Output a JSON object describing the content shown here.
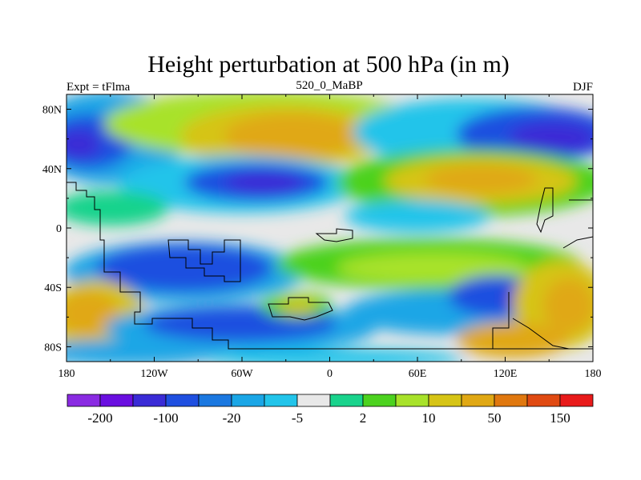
{
  "title": "Height perturbation at 500 hPa (in m)",
  "left_label": "Expt = tFlma",
  "center_label": "520_0_MaBP",
  "right_label": "DJF",
  "y_ticks": [
    "80N",
    "40N",
    "0",
    "40S",
    "80S"
  ],
  "x_ticks": [
    "180",
    "120W",
    "60W",
    "0",
    "60E",
    "120E",
    "180"
  ],
  "colorbar": {
    "colors": [
      "#8a2be2",
      "#6a0fe0",
      "#3a2bd6",
      "#1f4fe0",
      "#1b78e0",
      "#1aa6e6",
      "#22c4ea",
      "#e8e8e8",
      "#19d38c",
      "#4cd21f",
      "#a8e22a",
      "#d6c416",
      "#e0a814",
      "#e0780f",
      "#e04a12",
      "#e81a1a"
    ],
    "labels": [
      "-200",
      "-100",
      "-20",
      "-5",
      "2",
      "10",
      "50",
      "150"
    ]
  },
  "chart_data": {
    "type": "heatmap",
    "title": "Height perturbation at 500 hPa (in m)",
    "subtitle": "520_0_MaBP",
    "experiment": "Expt = tFlma",
    "season": "DJF",
    "x_range": [
      -180,
      180
    ],
    "y_range": [
      -90,
      90
    ],
    "x_ticks": [
      -180,
      -120,
      -60,
      0,
      60,
      120,
      180
    ],
    "y_ticks": [
      80,
      40,
      0,
      -40,
      -80
    ],
    "levels": [
      "-200",
      "-100",
      "-20",
      "-5",
      "2",
      "10",
      "50",
      "150"
    ],
    "features": [
      {
        "lon": -165,
        "lat": 62,
        "value": -150
      },
      {
        "lon": -70,
        "lat": 40,
        "value": -80
      },
      {
        "lon": 10,
        "lat": 68,
        "value": 120
      },
      {
        "lon": 145,
        "lat": 68,
        "value": -120
      },
      {
        "lon": 85,
        "lat": 38,
        "value": 90
      },
      {
        "lon": -165,
        "lat": -60,
        "value": 70
      },
      {
        "lon": -100,
        "lat": -35,
        "value": -60
      },
      {
        "lon": 120,
        "lat": -60,
        "value": 60
      },
      {
        "lon": 130,
        "lat": -48,
        "value": -70
      },
      {
        "lon": 60,
        "lat": -22,
        "value": 35
      }
    ]
  }
}
